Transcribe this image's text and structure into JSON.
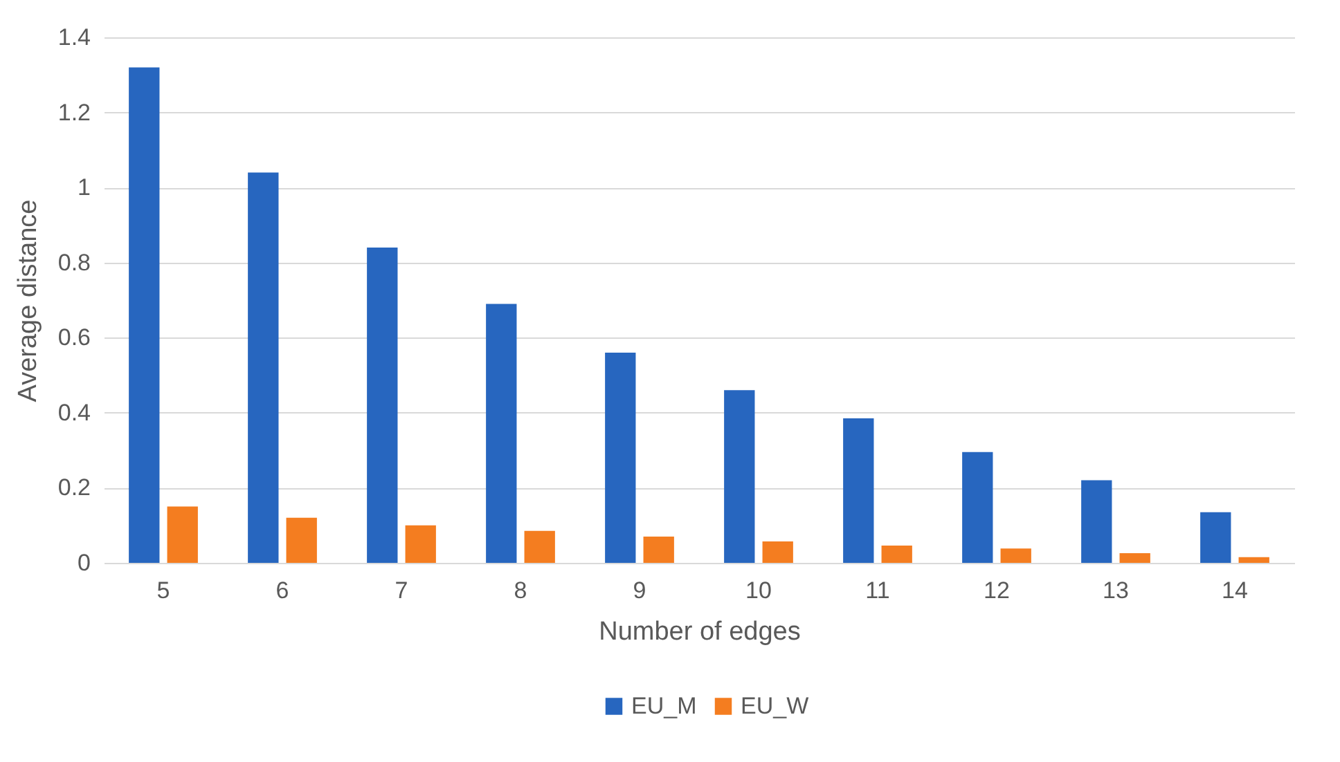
{
  "chart_data": {
    "type": "bar",
    "xlabel": "Number of edges",
    "ylabel": "Average distance",
    "categories": [
      "5",
      "6",
      "7",
      "8",
      "9",
      "10",
      "11",
      "12",
      "13",
      "14"
    ],
    "series": [
      {
        "name": "EU_M",
        "color": "#2766bf",
        "values": [
          1.32,
          1.04,
          0.84,
          0.69,
          0.56,
          0.46,
          0.385,
          0.295,
          0.22,
          0.135
        ]
      },
      {
        "name": "EU_W",
        "color": "#f47d20",
        "values": [
          0.15,
          0.12,
          0.1,
          0.085,
          0.07,
          0.057,
          0.046,
          0.038,
          0.026,
          0.015
        ]
      }
    ],
    "ylim": [
      0,
      1.4
    ],
    "yticks": [
      0,
      0.2,
      0.4,
      0.6,
      0.8,
      1,
      1.2,
      1.4
    ],
    "grid": "y",
    "legend": "bottom"
  }
}
